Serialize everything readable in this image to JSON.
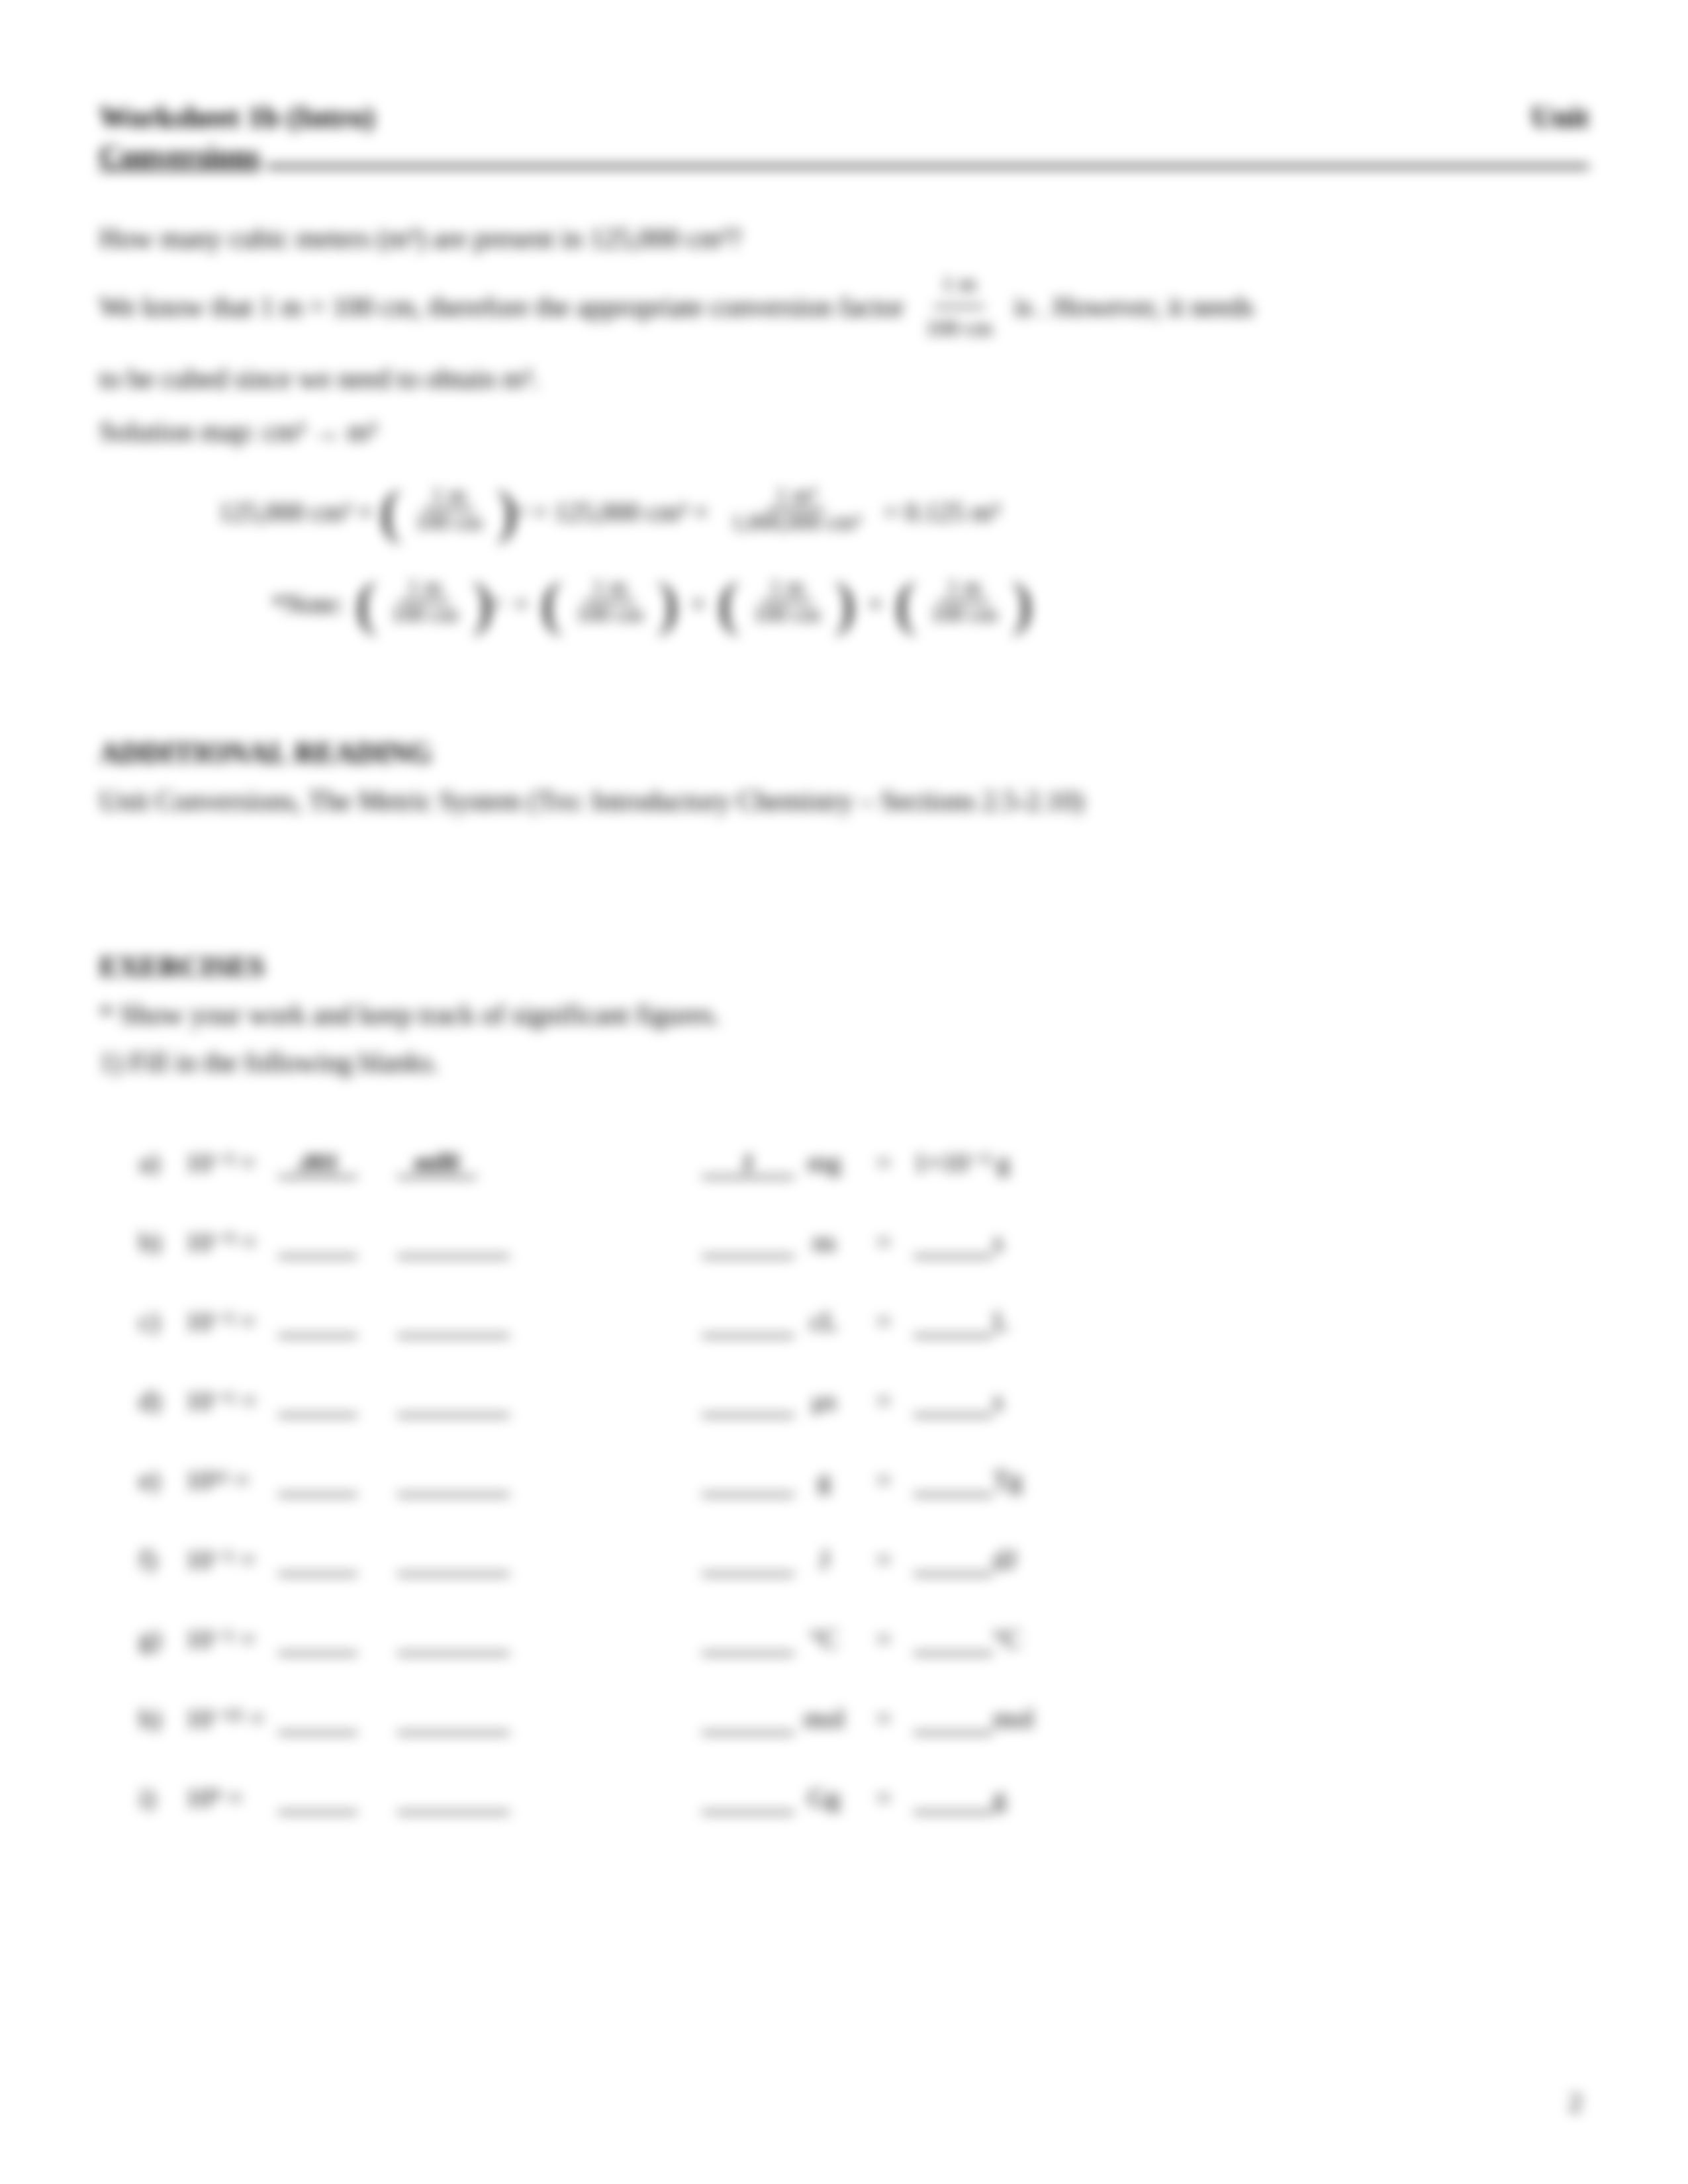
{
  "header": {
    "left": "Worksheet 1b (Intro)",
    "right": "Unit",
    "subtitle": "Conversions"
  },
  "problem": {
    "q": "How many cubic meters (m³) are present in 125,000 cm³?",
    "line2a": "We know that 1 m = 100 cm, therefore the appropriate conversion factor",
    "frac_num": "1 m",
    "frac_den": "100 cm",
    "line2b": "is . However, it needs",
    "line3": "to be cubed since we need to obtain m³.",
    "map": "Solution map: cm³ → m³"
  },
  "equation": {
    "start": "125,000 cm³ ×",
    "p1_num": "1 m",
    "p1_den": "100 cm",
    "p1_exp": "3",
    "mid": "= 125,000 cm³ ×",
    "p2_num": "1 m³",
    "p2_den": "1,000,000 cm³",
    "result": "= 0.125 m³"
  },
  "note": {
    "label": "*Note:",
    "n1": "1 m",
    "d1": "100 cm",
    "exp": "3",
    "eq": "=",
    "n2": "1 m",
    "d2": "100 cm",
    "times": "×"
  },
  "reading": {
    "h": "ADDITIONAL READING",
    "text": "Unit Conversions, The Metric System (Tro: Introductory Chemistry – Sections 2.5-2.10)"
  },
  "exercises": {
    "h": "EXERCISES",
    "note": "* Show your work and keep track of significant figures.",
    "q1": "1) Fill in the following blanks."
  },
  "rows": [
    {
      "l": "a)",
      "p": "10⁻³ =",
      "b1": ".001",
      "b2": "milli",
      "b3": "1",
      "u1": "mg",
      "eq": "=",
      "rhs": "1×10⁻³ g"
    },
    {
      "l": "b)",
      "p": "10⁻⁹ =",
      "b1": "",
      "b2": "",
      "b3": "",
      "u1": "ns",
      "eq": "=",
      "rhs_blank": true,
      "rhs_suf": "s"
    },
    {
      "l": "c)",
      "p": "10⁻² =",
      "b1": "",
      "b2": "",
      "b3": "",
      "u1": "cL",
      "eq": "=",
      "rhs_blank": true,
      "rhs_suf": "L"
    },
    {
      "l": "d)",
      "p": "10⁻⁶ =",
      "b1": "",
      "b2": "",
      "b3": "",
      "u1": "μs",
      "eq": "=",
      "rhs_blank": true,
      "rhs_suf": "s"
    },
    {
      "l": "e)",
      "p": "10¹² =",
      "b1": "",
      "b2": "",
      "b3": "",
      "u1": "g",
      "eq": "=",
      "rhs_blank": true,
      "rhs_suf": "Tg"
    },
    {
      "l": "f)",
      "p": "10⁻¹ =",
      "b1": "",
      "b2": "",
      "b3": "",
      "u1": "J",
      "eq": "=",
      "rhs_blank": true,
      "rhs_suf": "dJ"
    },
    {
      "l": "g)",
      "p": "10⁻¹ =",
      "b1": "",
      "b2": "",
      "b3": "",
      "u1": "°C",
      "eq": "=",
      "rhs_blank": true,
      "rhs_suf": "°C"
    },
    {
      "l": "h)",
      "p": "10⁻¹⁵ =",
      "b1": "",
      "b2": "",
      "b3": "",
      "u1": "mol",
      "eq": "=",
      "rhs_blank": true,
      "rhs_suf": "mol"
    },
    {
      "l": "i)",
      "p": "10⁹ =",
      "b1": "",
      "b2": "",
      "b3": "",
      "u1": "Gg",
      "eq": "=",
      "rhs_blank": true,
      "rhs_suf": "g"
    }
  ],
  "page_number": "2"
}
